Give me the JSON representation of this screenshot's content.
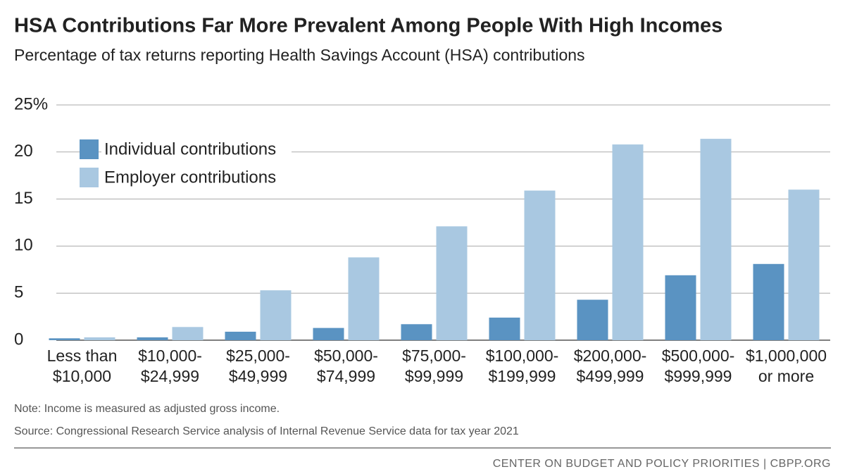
{
  "chart_data": {
    "type": "bar",
    "title": "HSA Contributions Far More Prevalent Among People With High Incomes",
    "subtitle": "Percentage of tax returns reporting Health Savings Account (HSA) contributions",
    "categories": [
      "Less than\n$10,000",
      "$10,000-\n$24,999",
      "$25,000-\n$49,999",
      "$50,000-\n$74,999",
      "$75,000-\n$99,999",
      "$100,000-\n$199,999",
      "$200,000-\n$499,999",
      "$500,000-\n$999,999",
      "$1,000,000\nor more"
    ],
    "series": [
      {
        "name": "Individual contributions",
        "color": "#5a93c2",
        "values": [
          0.2,
          0.3,
          0.9,
          1.3,
          1.7,
          2.4,
          4.3,
          6.9,
          8.1
        ]
      },
      {
        "name": "Employer contributions",
        "color": "#a9c8e1",
        "values": [
          0.3,
          1.4,
          5.3,
          8.8,
          12.1,
          15.9,
          20.8,
          21.4,
          16.0
        ]
      }
    ],
    "ylim": [
      0,
      25
    ],
    "yticks": [
      0,
      5,
      10,
      15,
      20,
      {
        "value": 25,
        "label": "25%"
      }
    ],
    "grid": true,
    "legend": "upper left",
    "note": "Note: Income is measured as adjusted gross income.",
    "source": "Source: Congressional Research Service analysis of Internal Revenue Service data for tax year 2021",
    "footer": "CENTER ON BUDGET AND POLICY PRIORITIES | CBPP.ORG"
  }
}
